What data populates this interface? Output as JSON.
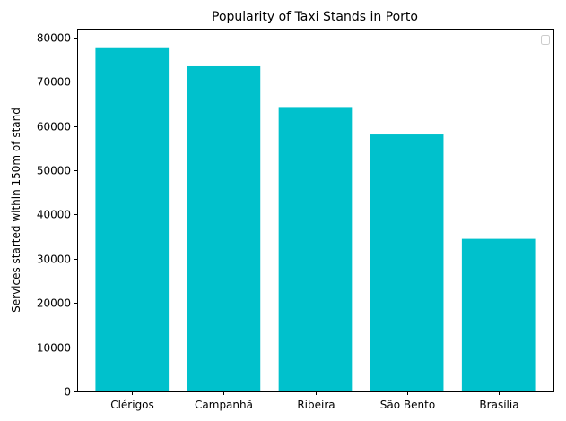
{
  "chart_data": {
    "type": "bar",
    "title": "Popularity of Taxi Stands in Porto",
    "xlabel": "",
    "ylabel": "Services started within 150m of stand",
    "categories": [
      "Clérigos",
      "Campanhã",
      "Ribeira",
      "São Bento",
      "Brasília"
    ],
    "values": [
      77600,
      73500,
      64100,
      58100,
      34500
    ],
    "ylim": [
      0,
      82000
    ],
    "yticks": [
      0,
      10000,
      20000,
      30000,
      40000,
      50000,
      60000,
      70000,
      80000
    ],
    "ytick_labels": [
      "0",
      "10000",
      "20000",
      "30000",
      "40000",
      "50000",
      "60000",
      "70000",
      "80000"
    ],
    "bar_color": "#00c1cc",
    "grid": false,
    "legend": {
      "placement": "upper right",
      "entries": []
    }
  }
}
